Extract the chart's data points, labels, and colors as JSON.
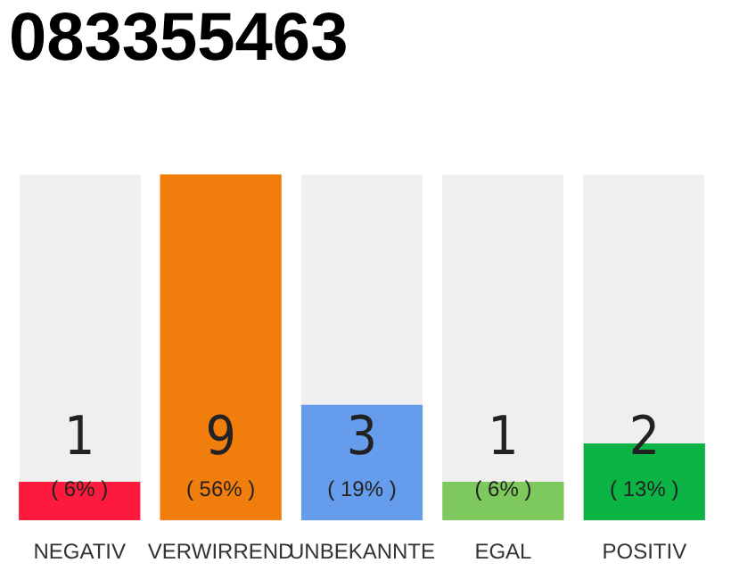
{
  "chart_data": {
    "type": "bar",
    "title": "083355463",
    "categories": [
      "NEGATIV",
      "VERWIRREND",
      "UNBEKANNTE",
      "EGAL",
      "POSITIV"
    ],
    "values": [
      1,
      9,
      3,
      1,
      2
    ],
    "colors": [
      "#fe1a3d",
      "#f07d0c",
      "#659cec",
      "#7ec95e",
      "#0cb446"
    ],
    "value_labels": [
      "1\n( 6% )",
      "9\n( 56% )",
      "3\n( 19% )",
      "1\n( 6% )",
      "2\n( 13% )"
    ],
    "tick_labels": "x",
    "grid": false,
    "legend": false
  }
}
